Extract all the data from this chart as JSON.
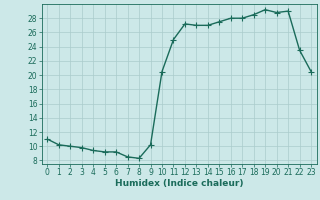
{
  "x": [
    0,
    1,
    2,
    3,
    4,
    5,
    6,
    7,
    8,
    9,
    10,
    11,
    12,
    13,
    14,
    15,
    16,
    17,
    18,
    19,
    20,
    21,
    22,
    23
  ],
  "y": [
    11,
    10.2,
    10,
    9.8,
    9.4,
    9.2,
    9.2,
    8.5,
    8.3,
    10.2,
    20.5,
    25,
    27.2,
    27,
    27,
    27.5,
    28,
    28,
    28.5,
    29.2,
    28.8,
    29,
    23.5,
    20.5
  ],
  "line_color": "#1a6b5a",
  "marker": "+",
  "markersize": 4,
  "linewidth": 1.0,
  "bg_color": "#cce8e8",
  "grid_color": "#aacccc",
  "xlabel": "Humidex (Indice chaleur)",
  "xlim": [
    -0.5,
    23.5
  ],
  "ylim": [
    7.5,
    30
  ],
  "yticks": [
    8,
    10,
    12,
    14,
    16,
    18,
    20,
    22,
    24,
    26,
    28
  ],
  "xticks": [
    0,
    1,
    2,
    3,
    4,
    5,
    6,
    7,
    8,
    9,
    10,
    11,
    12,
    13,
    14,
    15,
    16,
    17,
    18,
    19,
    20,
    21,
    22,
    23
  ],
  "tick_fontsize": 5.5,
  "xlabel_fontsize": 6.5
}
